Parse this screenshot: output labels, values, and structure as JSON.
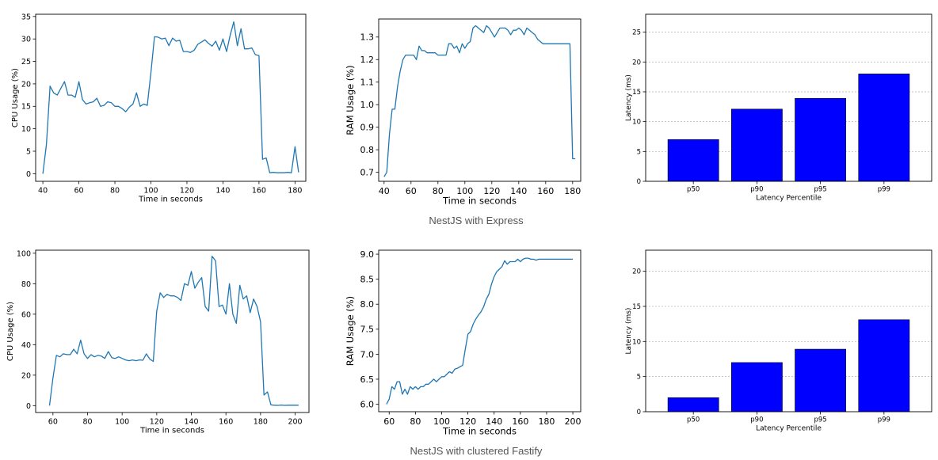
{
  "colors": {
    "line": "#1f77b4",
    "bar": "#0000ff",
    "axis": "#000000",
    "grid": "#b0b0b0",
    "caption": "#555555"
  },
  "sections": [
    {
      "caption": "NestJS with Express"
    },
    {
      "caption": "NestJS with clustered Fastify"
    }
  ],
  "chart_data": [
    {
      "id": "express-cpu",
      "type": "line",
      "title": "",
      "xlabel": "Time in seconds",
      "ylabel": "CPU Usage (%)",
      "xlim": [
        36,
        186
      ],
      "ylim": [
        -1.7,
        35.5
      ],
      "xticks": [
        40,
        60,
        80,
        100,
        120,
        140,
        160,
        180
      ],
      "yticks": [
        0,
        5,
        10,
        15,
        20,
        25,
        30,
        35
      ],
      "grid": false,
      "series": [
        {
          "name": "CPU Usage",
          "x": [
            40,
            42,
            44,
            46,
            48,
            50,
            52,
            54,
            56,
            58,
            60,
            62,
            64,
            66,
            68,
            70,
            72,
            74,
            76,
            78,
            80,
            82,
            84,
            86,
            88,
            90,
            92,
            94,
            96,
            98,
            100,
            102,
            104,
            106,
            108,
            110,
            112,
            114,
            116,
            118,
            120,
            122,
            124,
            126,
            128,
            130,
            132,
            134,
            136,
            138,
            140,
            142,
            144,
            146,
            148,
            150,
            152,
            154,
            156,
            158,
            160,
            162,
            164,
            166,
            168,
            170,
            172,
            174,
            176,
            178,
            180,
            182
          ],
          "y": [
            0,
            6.5,
            19.5,
            18,
            17.5,
            19,
            20.5,
            17.5,
            17.5,
            17,
            20.5,
            16.5,
            15.5,
            15.8,
            16,
            16.8,
            15,
            15.2,
            16,
            15.8,
            15,
            15,
            14.5,
            13.8,
            14.8,
            15.5,
            18,
            15,
            15.5,
            15.2,
            22.5,
            30.5,
            30.4,
            30,
            30.2,
            28.5,
            30.2,
            29.5,
            29.7,
            27.2,
            27.2,
            27,
            27.5,
            28.8,
            29.3,
            29.8,
            29,
            28.4,
            29.5,
            27.5,
            30,
            27.2,
            30.8,
            33.8,
            28.5,
            32.3,
            27.8,
            27.8,
            28,
            26.5,
            26.3,
            3.2,
            3.5,
            0.2,
            0.3,
            0.2,
            0.2,
            0.2,
            0.3,
            0.2,
            6,
            0.3
          ]
        }
      ]
    },
    {
      "id": "express-ram",
      "type": "line",
      "title": "",
      "xlabel": "Time in seconds",
      "ylabel": "RAM Usage (%)",
      "xlim": [
        36,
        186
      ],
      "ylim": [
        0.66,
        1.38
      ],
      "xticks": [
        40,
        60,
        80,
        100,
        120,
        140,
        160,
        180
      ],
      "yticks": [
        0.7,
        0.8,
        0.9,
        1.0,
        1.1,
        1.2,
        1.3
      ],
      "grid": false,
      "series": [
        {
          "name": "RAM Usage",
          "x": [
            40,
            42,
            44,
            46,
            48,
            50,
            52,
            54,
            56,
            58,
            60,
            62,
            64,
            66,
            68,
            70,
            72,
            74,
            76,
            78,
            80,
            82,
            84,
            86,
            88,
            90,
            92,
            94,
            96,
            98,
            100,
            102,
            104,
            106,
            108,
            110,
            112,
            114,
            116,
            118,
            120,
            122,
            124,
            126,
            128,
            130,
            132,
            134,
            136,
            138,
            140,
            142,
            144,
            146,
            148,
            150,
            152,
            154,
            156,
            158,
            160,
            162,
            164,
            166,
            168,
            170,
            172,
            174,
            176,
            178,
            180,
            182
          ],
          "y": [
            0.68,
            0.7,
            0.87,
            0.98,
            0.98,
            1.08,
            1.15,
            1.2,
            1.22,
            1.22,
            1.22,
            1.22,
            1.2,
            1.26,
            1.24,
            1.24,
            1.23,
            1.23,
            1.23,
            1.23,
            1.22,
            1.22,
            1.22,
            1.22,
            1.27,
            1.27,
            1.25,
            1.26,
            1.23,
            1.27,
            1.25,
            1.27,
            1.28,
            1.34,
            1.35,
            1.34,
            1.33,
            1.32,
            1.35,
            1.34,
            1.32,
            1.3,
            1.32,
            1.34,
            1.34,
            1.34,
            1.33,
            1.31,
            1.33,
            1.33,
            1.34,
            1.33,
            1.31,
            1.34,
            1.33,
            1.32,
            1.31,
            1.29,
            1.28,
            1.27,
            1.27,
            1.27,
            1.27,
            1.27,
            1.27,
            1.27,
            1.27,
            1.27,
            1.27,
            1.27,
            0.76,
            0.76
          ]
        }
      ]
    },
    {
      "id": "express-latency",
      "type": "bar",
      "title": "",
      "xlabel": "Latency Percentile",
      "ylabel": "Latency (ms)",
      "categories": [
        "p50",
        "p90",
        "p95",
        "p99"
      ],
      "values": [
        7,
        12.1,
        13.9,
        18
      ],
      "ylim": [
        0,
        28
      ],
      "yticks": [
        0,
        5,
        10,
        15,
        20,
        25
      ],
      "grid": true
    },
    {
      "id": "fastify-cpu",
      "type": "line",
      "title": "",
      "xlabel": "Time in seconds",
      "ylabel": "CPU Usage (%)",
      "xlim": [
        50,
        208
      ],
      "ylim": [
        -4.5,
        102
      ],
      "xticks": [
        60,
        80,
        100,
        120,
        140,
        160,
        180,
        200
      ],
      "yticks": [
        0,
        20,
        40,
        60,
        80,
        100
      ],
      "grid": false,
      "series": [
        {
          "name": "CPU Usage",
          "x": [
            58,
            60,
            62,
            64,
            66,
            68,
            70,
            72,
            74,
            76,
            78,
            80,
            82,
            84,
            86,
            88,
            90,
            92,
            94,
            96,
            98,
            100,
            102,
            104,
            106,
            108,
            110,
            112,
            114,
            116,
            118,
            120,
            122,
            124,
            126,
            128,
            130,
            132,
            134,
            136,
            138,
            140,
            142,
            144,
            146,
            148,
            150,
            152,
            154,
            156,
            158,
            160,
            162,
            164,
            166,
            168,
            170,
            172,
            174,
            176,
            178,
            180,
            182,
            184,
            186,
            188,
            190,
            192,
            194,
            196,
            198,
            200,
            202
          ],
          "y": [
            0,
            18,
            33,
            32,
            34,
            33.5,
            33.5,
            37,
            34,
            43,
            34,
            31,
            33.5,
            32,
            33,
            32.5,
            31,
            35.5,
            31.5,
            31,
            32,
            31,
            30,
            29.5,
            30,
            29.5,
            30,
            29.8,
            34,
            30.5,
            29,
            62,
            74,
            71,
            73,
            72,
            72,
            71,
            69,
            80,
            79,
            88,
            77,
            81,
            84,
            65,
            62,
            98,
            95,
            65,
            66,
            60,
            80,
            60,
            54,
            79,
            70,
            72,
            61,
            70,
            65,
            55,
            7,
            9,
            0.5,
            0.3,
            0.2,
            0.4,
            0.2,
            0.3,
            0.3,
            0.3,
            0.3
          ]
        }
      ]
    },
    {
      "id": "fastify-ram",
      "type": "line",
      "title": "",
      "xlabel": "Time in seconds",
      "ylabel": "RAM Usage (%)",
      "xlim": [
        52,
        206
      ],
      "ylim": [
        5.85,
        9.08
      ],
      "xticks": [
        60,
        80,
        100,
        120,
        140,
        160,
        180,
        200
      ],
      "yticks": [
        6.0,
        6.5,
        7.0,
        7.5,
        8.0,
        8.5,
        9.0
      ],
      "grid": false,
      "series": [
        {
          "name": "RAM Usage",
          "x": [
            58,
            60,
            62,
            64,
            66,
            68,
            70,
            72,
            74,
            76,
            78,
            80,
            82,
            84,
            86,
            88,
            90,
            92,
            94,
            96,
            98,
            100,
            102,
            104,
            106,
            108,
            110,
            112,
            114,
            116,
            118,
            120,
            122,
            124,
            126,
            128,
            130,
            132,
            134,
            136,
            138,
            140,
            142,
            144,
            146,
            148,
            150,
            152,
            154,
            156,
            158,
            160,
            162,
            164,
            166,
            168,
            170,
            172,
            174,
            176,
            178,
            180,
            182,
            184,
            186,
            188,
            190,
            192,
            194,
            196,
            198,
            200
          ],
          "y": [
            6.0,
            6.1,
            6.35,
            6.3,
            6.45,
            6.45,
            6.2,
            6.3,
            6.2,
            6.35,
            6.3,
            6.35,
            6.3,
            6.35,
            6.35,
            6.4,
            6.4,
            6.45,
            6.5,
            6.45,
            6.5,
            6.55,
            6.55,
            6.6,
            6.65,
            6.62,
            6.7,
            6.72,
            6.75,
            6.78,
            7.1,
            7.4,
            7.45,
            7.6,
            7.7,
            7.78,
            7.85,
            7.95,
            8.1,
            8.2,
            8.4,
            8.55,
            8.65,
            8.7,
            8.75,
            8.87,
            8.8,
            8.85,
            8.85,
            8.85,
            8.9,
            8.85,
            8.9,
            8.92,
            8.92,
            8.9,
            8.9,
            8.88,
            8.9,
            8.9,
            8.9,
            8.9,
            8.9,
            8.9,
            8.9,
            8.9,
            8.9,
            8.9,
            8.9,
            8.9,
            8.9,
            8.9
          ]
        }
      ]
    },
    {
      "id": "fastify-latency",
      "type": "bar",
      "title": "",
      "xlabel": "Latency Percentile",
      "ylabel": "Latency (ms)",
      "categories": [
        "p50",
        "p90",
        "p95",
        "p99"
      ],
      "values": [
        2,
        7,
        8.9,
        13.1
      ],
      "ylim": [
        0,
        23
      ],
      "yticks": [
        0,
        5,
        10,
        15,
        20
      ],
      "grid": true
    }
  ]
}
